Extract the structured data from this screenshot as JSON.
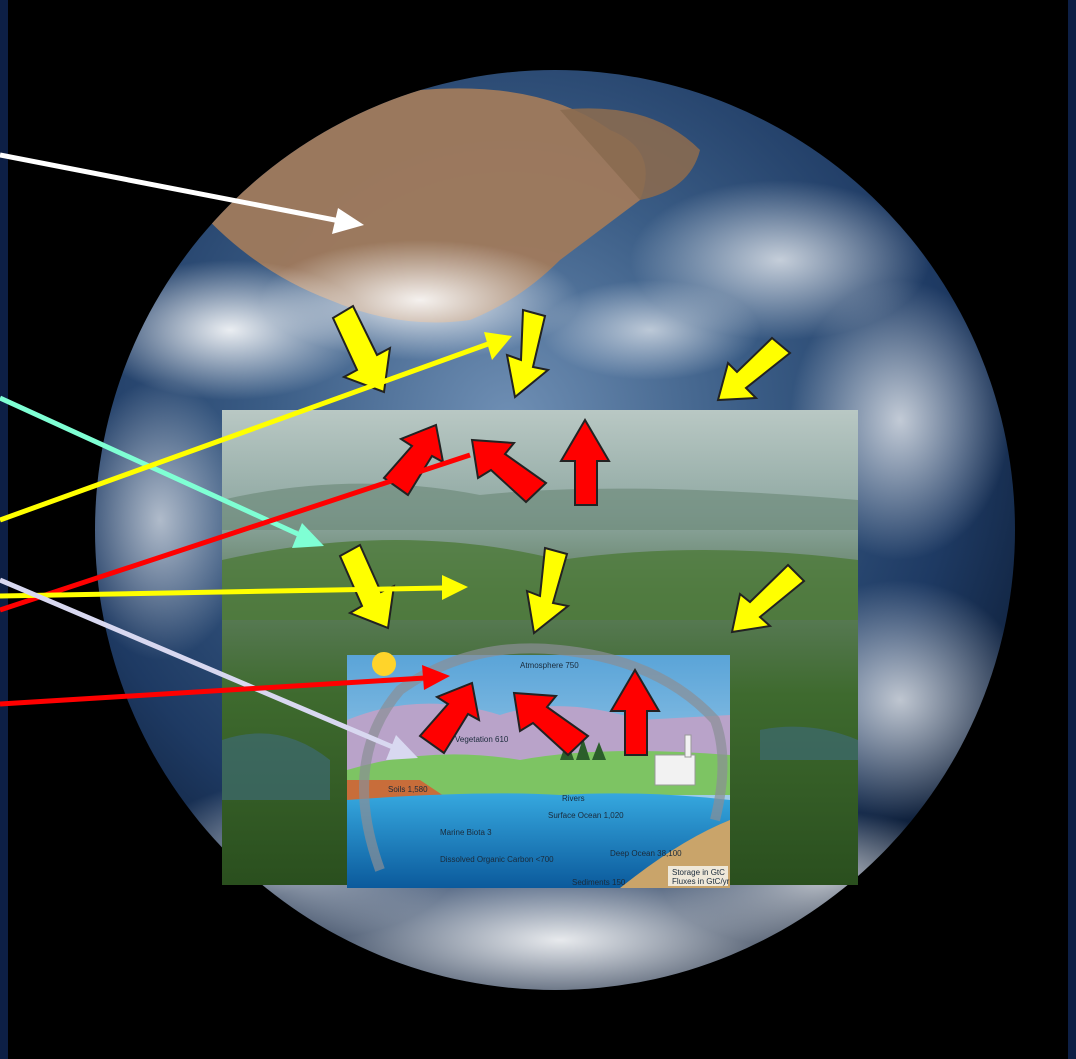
{
  "colors": {
    "frame": "#0d1f45",
    "background": "#000000",
    "arrow_white": "#ffffff",
    "arrow_cyan": "#7fffd4",
    "arrow_yellow": "#ffff00",
    "arrow_red": "#ff0000",
    "arrow_lavender": "#d8d8f0",
    "flux_down": "#ffff00",
    "flux_up": "#ff0000",
    "outline": "#222222"
  },
  "carbon_diagram": {
    "atmosphere": "Atmosphere 750",
    "vegetation": "Vegetation 610",
    "soils": "Soils 1,580",
    "rivers": "Rivers",
    "surface_ocean": "Surface Ocean 1,020",
    "marine_biota": "Marine Biota 3",
    "dissolved_organic_carbon": "Dissolved Organic Carbon <700",
    "deep_ocean": "Deep Ocean 38,100",
    "sediments": "Sediments 150",
    "legend_storage": "Storage in GtC",
    "legend_fluxes": "Fluxes in GtC/yr"
  }
}
